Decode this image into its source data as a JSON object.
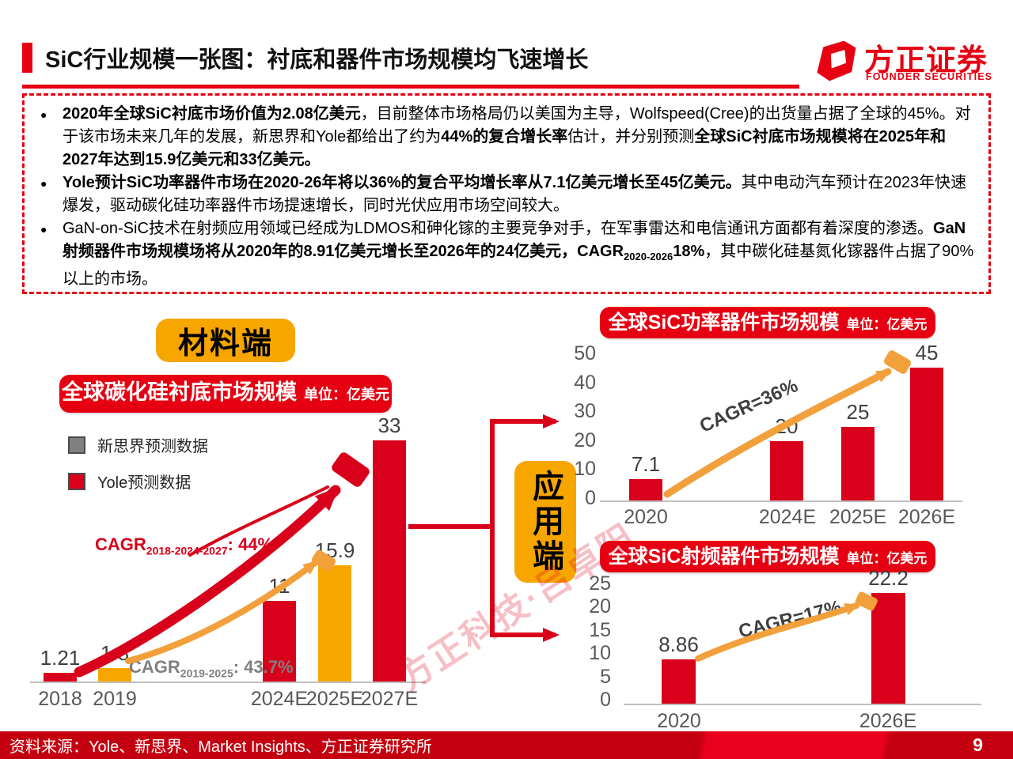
{
  "colors": {
    "accent_red": "#E60012",
    "bar_red": "#D9001B",
    "orange": "#F7A600",
    "arrow_orange": "#F2A03C",
    "axis_gray": "#BFBFBF",
    "tick_gray": "#595959",
    "value_gray": "#404040",
    "footer_dark_red": "#C40010",
    "footer_bright_red": "#E8001C"
  },
  "header": {
    "title": "SiC行业规模一张图：衬底和器件市场规模均飞速增长",
    "logo_cn": "方正证券",
    "logo_en": "FOUNDER SECURITIES"
  },
  "summary": {
    "bullets": [
      {
        "segments": [
          {
            "t": "2020年全球SiC衬底市场价值为2.08亿美元",
            "b": true
          },
          {
            "t": "，目前整体市场格局仍以美国为主导，Wolfspeed(Cree)的出货量占据了全球的45%。对于该市场未来几年的发展，新思界和Yole都给出了约为",
            "b": false
          },
          {
            "t": "44%的复合增长率",
            "b": true
          },
          {
            "t": "估计，并分别预测",
            "b": false
          },
          {
            "t": "全球SiC衬底市场规模将在2025年和2027年达到15.9亿美元和33亿美元。",
            "b": true
          }
        ]
      },
      {
        "segments": [
          {
            "t": "Yole预计SiC功率器件市场在2020-26年将以36%的复合平均增长率从7.1亿美元增长至45亿美元。",
            "b": true
          },
          {
            "t": "其中电动汽车预计在2023年快速爆发，驱动碳化硅功率器件市场提速增长，同时光伏应用市场空间较大。",
            "b": false
          }
        ]
      },
      {
        "segments": [
          {
            "t": "GaN-on-SiC技术在射频应用领域已经成为LDMOS和砷化镓的主要竞争对手，在军事雷达和电信通讯方面都有着深度的渗透。",
            "b": false
          },
          {
            "t": "GaN射频器件市场规模场将从2020年的8.91亿美元增长至2026年的24亿美元，CAGR",
            "b": true
          },
          {
            "t": "2020-2026",
            "b": true,
            "sub": true
          },
          {
            "t": "18%",
            "b": true
          },
          {
            "t": "，其中碳化硅基氮化镓器件占据了90%以上的市场。",
            "b": false
          }
        ]
      }
    ]
  },
  "material_label": "材料端",
  "application_label": "应用端",
  "watermark": "方正科技·吕卓阳",
  "chart_data": [
    {
      "type": "bar",
      "title": "全球碳化硅衬底市场规模",
      "unit": "单位：亿美元",
      "categories": [
        "2018",
        "2019",
        "2024E",
        "2025E",
        "2027E"
      ],
      "values": [
        "1.21",
        "1.8",
        "11",
        "15.9",
        "33"
      ],
      "bar_colors": [
        "red",
        "orange",
        "red",
        "orange",
        "red"
      ],
      "ylim": [
        0,
        35
      ],
      "legend": [
        {
          "label": "新思界预测数据",
          "swatch": "gray"
        },
        {
          "label": "Yole预测数据",
          "swatch": "red"
        }
      ],
      "cagr_red": {
        "prefix": "CAGR",
        "sub": "2018-2024-2027",
        "suffix": ": 44%"
      },
      "cagr_gray": {
        "prefix": "CAGR",
        "sub": "2019-2025",
        "suffix": ": 43.7%"
      }
    },
    {
      "type": "bar",
      "title": "全球SiC功率器件市场规模",
      "unit": "单位：亿美元",
      "categories": [
        "2020",
        "2024E",
        "2025E",
        "2026E"
      ],
      "values": [
        "7.1",
        "20",
        "25",
        "45"
      ],
      "bar_colors": [
        "red",
        "red",
        "red",
        "red"
      ],
      "yticks": [
        "50",
        "40",
        "30",
        "20",
        "10",
        "0"
      ],
      "ylim": [
        0,
        50
      ],
      "cagr": "CAGR=36%"
    },
    {
      "type": "bar",
      "title": "全球SiC射频器件市场规模",
      "unit": "单位：亿美元",
      "categories": [
        "2020",
        "2026E"
      ],
      "values": [
        "8.86",
        "22.2"
      ],
      "bar_colors": [
        "red",
        "red"
      ],
      "yticks": [
        "25",
        "20",
        "15",
        "10",
        "5",
        "0"
      ],
      "ylim": [
        0,
        25
      ],
      "cagr": "CAGR=17%"
    }
  ],
  "footer": {
    "source": "资料来源：Yole、新思界、Market Insights、方正证券研究所",
    "page": "9"
  }
}
